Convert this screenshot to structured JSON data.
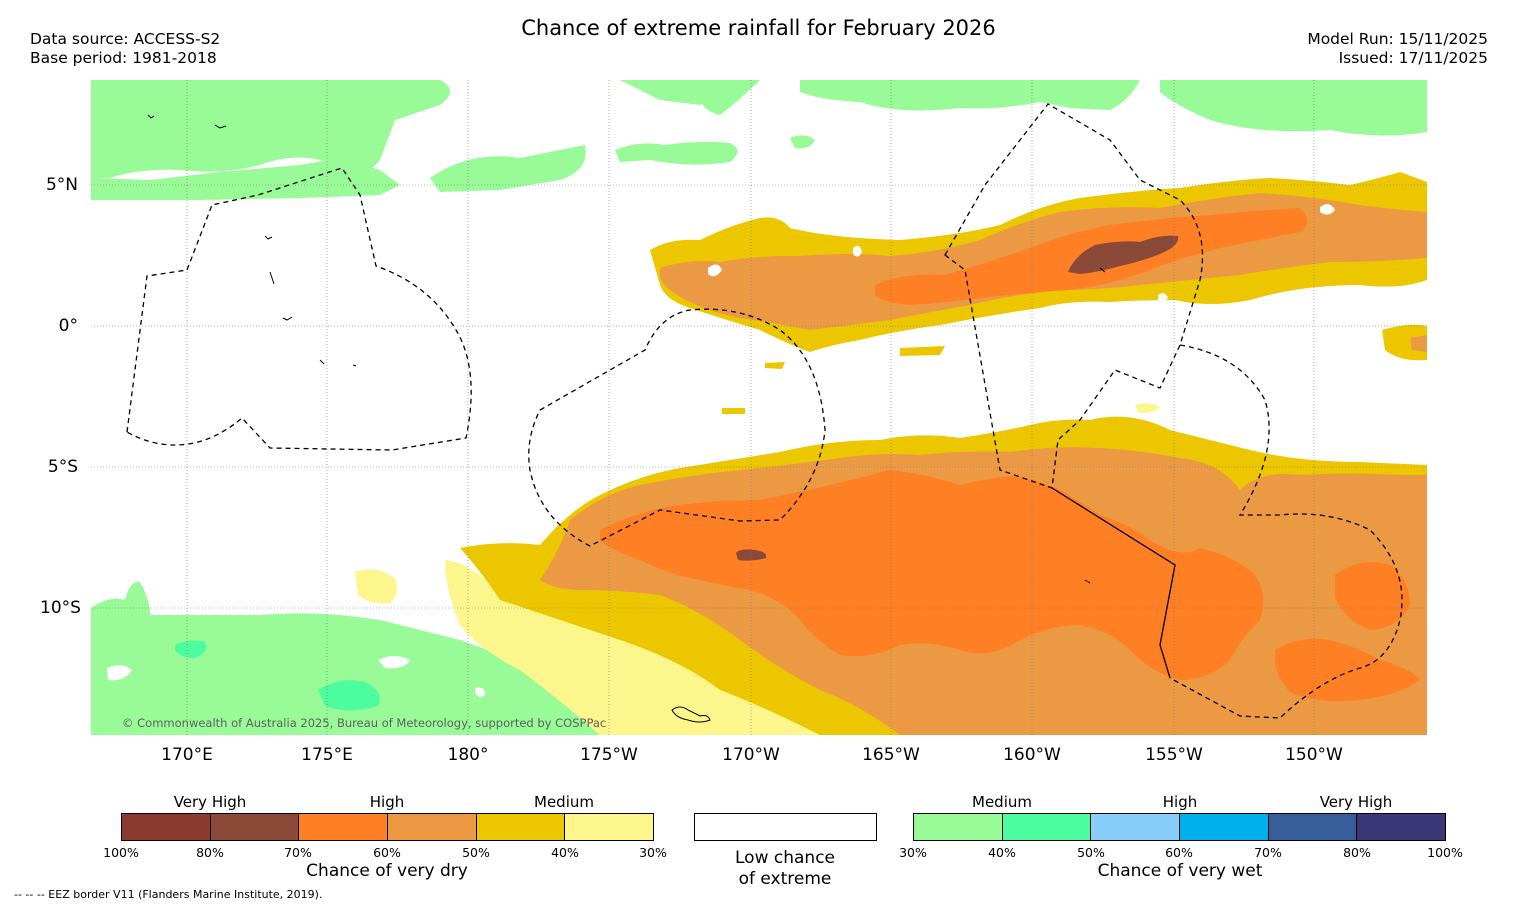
{
  "title": "Chance of extreme rainfall for February 2026",
  "meta": {
    "data_source": "Data source: ACCESS-S2",
    "base_period": "Base period: 1981-2018",
    "model_run": "Model Run: 15/11/2025",
    "issued": "Issued: 17/11/2025"
  },
  "map": {
    "lat_labels": [
      "5°N",
      "0°",
      "5°S",
      "10°S"
    ],
    "lon_labels": [
      "170°E",
      "175°E",
      "180°",
      "175°W",
      "170°W",
      "165°W",
      "160°W",
      "155°W",
      "150°W"
    ],
    "copyright": "© Commonwealth of Australia 2025, Bureau of Meteorology, supported by COSPPac"
  },
  "legend": {
    "dry": {
      "categories": [
        "Very High",
        "High",
        "Medium"
      ],
      "ticks": [
        "100%",
        "80%",
        "70%",
        "60%",
        "50%",
        "40%",
        "30%"
      ],
      "colors": [
        "#8b3a30",
        "#8b4a38",
        "#ff7f24",
        "#ec9944",
        "#ecc700",
        "#fdf68c"
      ],
      "title": "Chance of very dry"
    },
    "low": {
      "title_line1": "Low chance",
      "title_line2": "of extreme",
      "color": "#ffffff"
    },
    "wet": {
      "categories": [
        "Medium",
        "High",
        "Very High"
      ],
      "ticks": [
        "30%",
        "40%",
        "50%",
        "60%",
        "70%",
        "80%",
        "100%"
      ],
      "colors": [
        "#98fb98",
        "#4dfc9e",
        "#87cefa",
        "#00b0ec",
        "#365f9a",
        "#3c3776"
      ],
      "title": "Chance of very wet"
    }
  },
  "footnote": "--  --  -- EEZ border V11 (Flanders Marine Institute, 2019)."
}
